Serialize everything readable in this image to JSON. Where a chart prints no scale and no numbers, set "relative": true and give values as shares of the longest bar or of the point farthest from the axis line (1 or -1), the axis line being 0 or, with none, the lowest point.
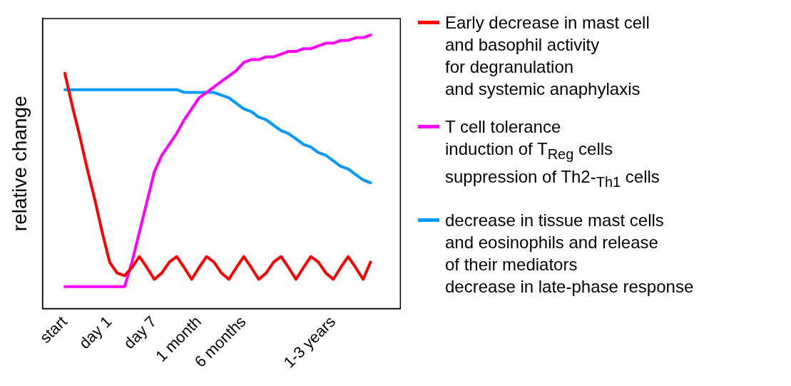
{
  "chart_data": {
    "type": "line",
    "relative": true,
    "ylabel": "relative change",
    "legend": "right",
    "grid": false,
    "marker": "none",
    "categories": [
      null,
      null,
      null,
      "start",
      null,
      null,
      null,
      null,
      null,
      "day 1",
      null,
      null,
      null,
      null,
      null,
      "day 7",
      null,
      null,
      null,
      null,
      null,
      "1 month",
      null,
      null,
      null,
      null,
      null,
      "6 months",
      null,
      null,
      null,
      null,
      null,
      null,
      null,
      null,
      null,
      null,
      null,
      "1-3 years",
      null,
      null,
      null,
      null,
      null,
      null,
      null,
      null,
      null
    ],
    "series": [
      {
        "name": "Early decrease in mast cell\nand basophil activity\nfor degranulation\nand systemic anaphylaxis",
        "color": "#ff0000",
        "values": [
          null,
          null,
          null,
          0.86,
          0.74,
          0.63,
          0.51,
          0.4,
          0.28,
          0.17,
          0.13,
          0.12,
          0.15,
          0.19,
          0.15,
          0.107,
          0.13,
          0.17,
          0.19,
          0.15,
          0.107,
          0.15,
          0.19,
          0.17,
          0.13,
          0.107,
          0.15,
          0.19,
          0.15,
          0.107,
          0.13,
          0.17,
          0.19,
          0.15,
          0.107,
          0.15,
          0.19,
          0.17,
          0.13,
          0.107,
          0.15,
          0.19,
          0.15,
          0.107,
          0.17,
          null,
          null,
          null,
          null
        ]
      },
      {
        "name": "T cell tolerance\ninduction of T$_{Reg}$ cells\nsuppression of Th2-$_{Th1}$ cells",
        "color": "#ff00ff",
        "values": [
          null,
          null,
          null,
          0.08,
          0.08,
          0.08,
          0.08,
          0.08,
          0.08,
          0.08,
          0.08,
          0.08,
          0.17,
          0.28,
          0.39,
          0.5,
          0.56,
          0.6,
          0.64,
          0.69,
          0.73,
          0.77,
          0.79,
          0.81,
          0.83,
          0.85,
          0.87,
          0.9,
          0.91,
          0.91,
          0.92,
          0.92,
          0.93,
          0.94,
          0.94,
          0.95,
          0.95,
          0.96,
          0.97,
          0.97,
          0.98,
          0.98,
          0.99,
          0.99,
          1,
          null,
          null,
          null,
          null
        ]
      },
      {
        "name": "decrease in tissue mast cells\nand eosinophils and release\nof their mediators\ndecrease in late-phase response",
        "color": "#0099ff",
        "values": [
          null,
          null,
          null,
          0.8,
          0.8,
          0.8,
          0.8,
          0.8,
          0.8,
          0.8,
          0.8,
          0.8,
          0.8,
          0.8,
          0.8,
          0.8,
          0.8,
          0.8,
          0.8,
          0.79,
          0.79,
          0.79,
          0.79,
          0.79,
          0.78,
          0.77,
          0.75,
          0.73,
          0.72,
          0.7,
          0.69,
          0.67,
          0.65,
          0.64,
          0.62,
          0.6,
          0.59,
          0.57,
          0.56,
          0.54,
          0.52,
          0.51,
          0.49,
          0.47,
          0.46,
          null,
          null,
          null,
          null
        ]
      }
    ]
  }
}
